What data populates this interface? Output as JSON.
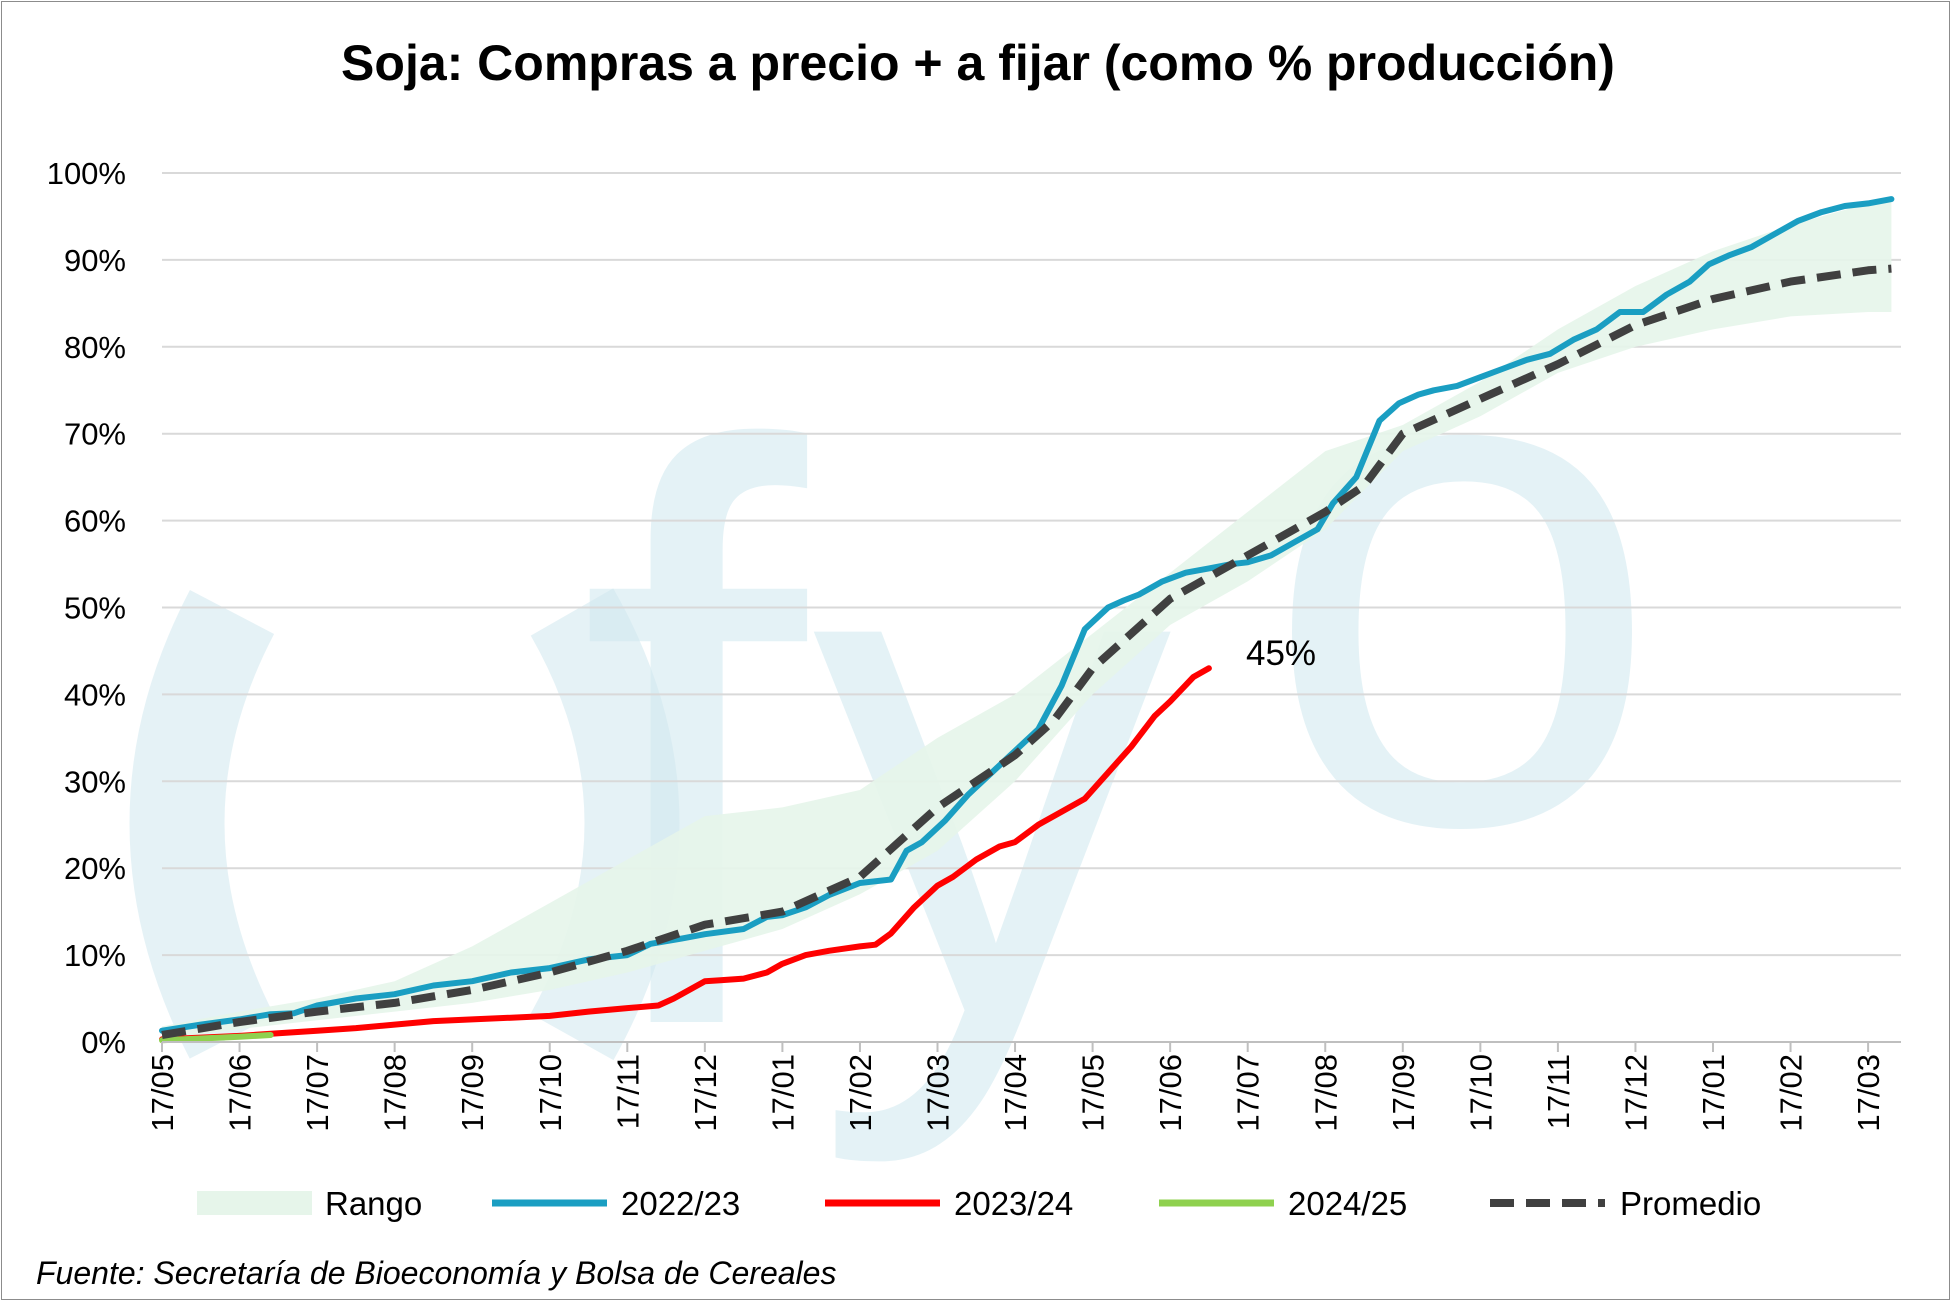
{
  "chart_data": {
    "type": "line",
    "title": "Soja: Compras a precio + a fijar (como % producción)",
    "watermark": "fyo",
    "source": "Fuente: Secretaría de Bioeconomía y Bolsa de Cereales",
    "ylim": [
      0,
      100
    ],
    "yticks": [
      "0%",
      "10%",
      "20%",
      "30%",
      "40%",
      "50%",
      "60%",
      "70%",
      "80%",
      "90%",
      "100%"
    ],
    "x_range": [
      0,
      22.3
    ],
    "xticks": [
      "17/05",
      "17/06",
      "17/07",
      "17/08",
      "17/09",
      "17/10",
      "17/11",
      "17/12",
      "17/01",
      "17/02",
      "17/03",
      "17/04",
      "17/05",
      "17/06",
      "17/07",
      "17/08",
      "17/09",
      "17/10",
      "17/11",
      "17/12",
      "17/01",
      "17/02",
      "17/03"
    ],
    "grid": true,
    "legend_position": "bottom",
    "colors": {
      "rango": "#e6f5ea",
      "s2223": "#1a9ec2",
      "s2324": "#ff0000",
      "s2425": "#8fd14f",
      "promedio": "#404040",
      "grid": "#d9d9d9",
      "axis": "#bfbfbf",
      "watermark": "#cfe8ef"
    },
    "legend": [
      "Rango",
      "2022/23",
      "2023/24",
      "2024/25",
      "Promedio"
    ],
    "annotation": "45%",
    "series": [
      {
        "name": "Rango",
        "type": "band",
        "x": [
          0,
          1,
          2,
          3,
          4,
          5,
          6,
          7,
          8,
          9,
          10,
          11,
          12,
          13,
          14,
          15,
          16,
          17,
          18,
          19,
          20,
          21,
          22,
          22.3
        ],
        "low": [
          0.3,
          1.5,
          2.5,
          3.5,
          4.5,
          6,
          8,
          10.5,
          13,
          17,
          22,
          30,
          40,
          48,
          53,
          59,
          68,
          72,
          77,
          80,
          82,
          83.5,
          84,
          84
        ],
        "high": [
          1.8,
          3.5,
          5,
          7,
          11,
          16,
          21,
          26,
          27,
          29,
          35,
          40,
          47,
          54,
          61,
          68,
          71,
          76,
          82,
          87,
          91,
          94,
          96.5,
          97
        ]
      },
      {
        "name": "2022/23",
        "x": [
          0,
          0.5,
          1,
          1.4,
          1.7,
          2,
          2.5,
          3,
          3.5,
          4,
          4.5,
          5,
          5.5,
          6,
          6.3,
          6.7,
          7,
          7.5,
          7.8,
          8,
          8.3,
          8.6,
          9,
          9.4,
          9.6,
          9.8,
          10.1,
          10.4,
          10.7,
          11,
          11.3,
          11.6,
          11.9,
          12.2,
          12.4,
          12.6,
          12.9,
          13.2,
          13.5,
          13.8,
          14,
          14.3,
          14.6,
          14.9,
          15.1,
          15.4,
          15.7,
          15.95,
          16.2,
          16.4,
          16.7,
          17,
          17.3,
          17.6,
          17.9,
          18.2,
          18.5,
          18.8,
          19.1,
          19.4,
          19.7,
          19.95,
          20.2,
          20.5,
          20.8,
          21.1,
          21.4,
          21.7,
          22,
          22.3
        ],
        "y": [
          1.3,
          2,
          2.6,
          3.2,
          3.3,
          4.2,
          5,
          5.5,
          6.5,
          7,
          8,
          8.5,
          9.5,
          10,
          11.3,
          11.9,
          12.4,
          13,
          14.4,
          14.6,
          15.5,
          16.9,
          18.3,
          18.7,
          22,
          23,
          25.5,
          28.5,
          31,
          33.5,
          36,
          41,
          47.5,
          50,
          50.8,
          51.5,
          53,
          54,
          54.5,
          55,
          55.2,
          56,
          57.5,
          59,
          62,
          65,
          71.5,
          73.5,
          74.5,
          75,
          75.5,
          76.5,
          77.5,
          78.5,
          79.2,
          80.8,
          82,
          84,
          84,
          86,
          87.5,
          89.5,
          90.5,
          91.5,
          93,
          94.5,
          95.5,
          96.2,
          96.5,
          97
        ]
      },
      {
        "name": "2023/24",
        "x": [
          0,
          1,
          1.5,
          2,
          2.5,
          3,
          3.5,
          4,
          4.5,
          5,
          5.5,
          6,
          6.4,
          6.6,
          7,
          7.2,
          7.5,
          7.8,
          8,
          8.3,
          8.6,
          9,
          9.2,
          9.4,
          9.7,
          10,
          10.2,
          10.5,
          10.8,
          11,
          11.3,
          11.6,
          11.9,
          12.2,
          12.5,
          12.8,
          13,
          13.3,
          13.5
        ],
        "y": [
          0.3,
          0.7,
          1,
          1.3,
          1.6,
          2,
          2.4,
          2.6,
          2.8,
          3,
          3.5,
          3.9,
          4.2,
          5,
          7,
          7.1,
          7.3,
          8,
          9,
          10,
          10.5,
          11,
          11.2,
          12.5,
          15.5,
          18,
          19,
          21,
          22.5,
          23,
          25,
          26.5,
          28,
          31,
          34,
          37.5,
          39.2,
          42,
          43
        ]
      },
      {
        "name": "2024/25",
        "x": [
          0,
          0.5,
          1,
          1.4
        ],
        "y": [
          0.2,
          0.4,
          0.6,
          0.8
        ]
      },
      {
        "name": "Promedio",
        "type": "dashed",
        "x": [
          0,
          1,
          2,
          3,
          4,
          5,
          6,
          7,
          8,
          9,
          10,
          11,
          11.5,
          12,
          13,
          14,
          15,
          15.5,
          16,
          16.5,
          17,
          18,
          19,
          20,
          21,
          22,
          22.3
        ],
        "y": [
          0.8,
          2.3,
          3.5,
          4.5,
          6,
          8,
          10.5,
          13.5,
          15,
          19,
          27,
          33,
          37,
          43,
          51,
          56,
          61,
          64,
          70,
          72,
          74,
          78,
          82.5,
          85.5,
          87.5,
          88.8,
          89
        ]
      }
    ]
  }
}
